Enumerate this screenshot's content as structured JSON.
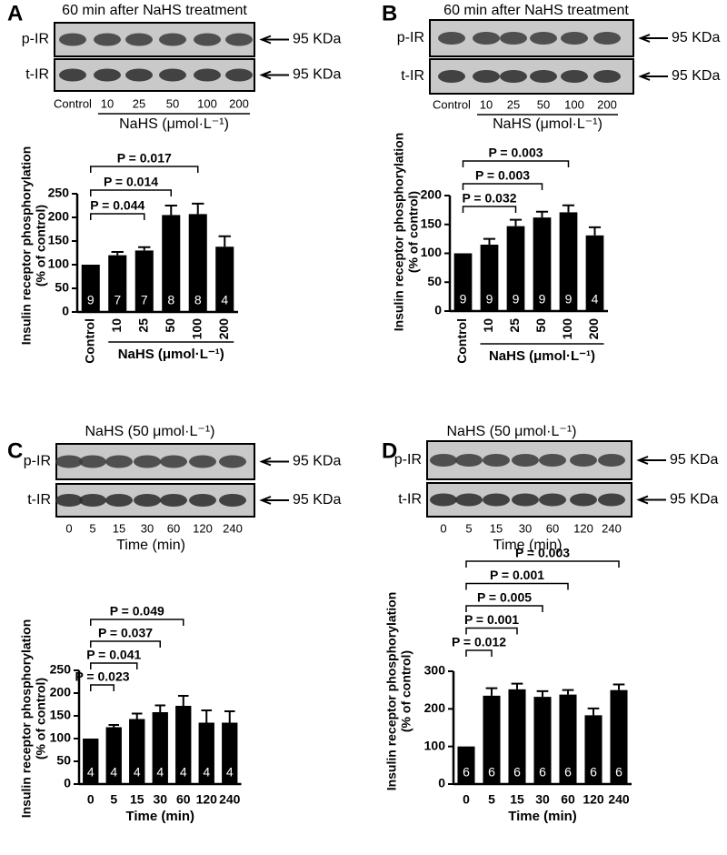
{
  "chart_data": [
    {
      "type": "bar",
      "label": "A",
      "blot": {
        "title": "60 min after NaHS treatment",
        "rows": [
          "p-IR",
          "t-IR"
        ],
        "marker": [
          "95 KDa",
          "95 KDa"
        ],
        "lanes": [
          "Control",
          "10",
          "25",
          "50",
          "100",
          "200"
        ],
        "xlabel": "NaHS (μmol·L⁻¹)"
      },
      "ylabel": [
        "Insulin receptor phosphorylation",
        "(% of control)"
      ],
      "categories": [
        "Control",
        "10",
        "25",
        "50",
        "100",
        "200"
      ],
      "xlabel": "NaHS (μmol·L⁻¹)",
      "group_bracket": true,
      "values": [
        100,
        120,
        130,
        205,
        207,
        138
      ],
      "errors": [
        0,
        7,
        7,
        20,
        22,
        22
      ],
      "n": [
        9,
        7,
        7,
        8,
        8,
        4
      ],
      "color": "#000000",
      "ylim": [
        0,
        250
      ],
      "yticks": [
        0,
        50,
        100,
        150,
        200,
        250
      ],
      "annotations": [
        {
          "text": "P = 0.044",
          "between": [
            "Control",
            "25"
          ]
        },
        {
          "text": "P = 0.014",
          "between": [
            "Control",
            "50"
          ]
        },
        {
          "text": "P = 0.017",
          "between": [
            "Control",
            "100"
          ]
        }
      ]
    },
    {
      "type": "bar",
      "label": "B",
      "blot": {
        "title": "60 min after NaHS treatment",
        "rows": [
          "p-IR",
          "t-IR"
        ],
        "marker": [
          "95 KDa",
          "95 KDa"
        ],
        "lanes": [
          "Control",
          "10",
          "25",
          "50",
          "100",
          "200"
        ],
        "xlabel": "NaHS (μmol·L⁻¹)"
      },
      "ylabel": [
        "Insulin receptor phosphorylation",
        "(% of control)"
      ],
      "categories": [
        "Control",
        "10",
        "25",
        "50",
        "100",
        "200"
      ],
      "xlabel": "NaHS (μmol·L⁻¹)",
      "group_bracket": true,
      "values": [
        100,
        115,
        147,
        162,
        171,
        131
      ],
      "errors": [
        0,
        10,
        11,
        10,
        12,
        14
      ],
      "n": [
        9,
        9,
        9,
        9,
        9,
        4
      ],
      "color": "#000000",
      "ylim": [
        0,
        200
      ],
      "yticks": [
        0,
        50,
        100,
        150,
        200
      ],
      "annotations": [
        {
          "text": "P = 0.032",
          "between": [
            "Control",
            "25"
          ]
        },
        {
          "text": "P = 0.003",
          "between": [
            "Control",
            "50"
          ]
        },
        {
          "text": "P = 0.003",
          "between": [
            "Control",
            "100"
          ]
        }
      ]
    },
    {
      "type": "bar",
      "label": "C",
      "blot": {
        "title": "NaHS (50 μmol·L⁻¹)",
        "rows": [
          "p-IR",
          "t-IR"
        ],
        "marker": [
          "95 KDa",
          "95 KDa"
        ],
        "lanes": [
          "0",
          "5",
          "15",
          "30",
          "60",
          "120",
          "240"
        ],
        "xlabel": "Time (min)"
      },
      "ylabel": [
        "Insulin receptor phosphorylation",
        "(% of control)"
      ],
      "categories": [
        "0",
        "5",
        "15",
        "30",
        "60",
        "120",
        "240"
      ],
      "xlabel": "Time (min)",
      "group_bracket": false,
      "values": [
        100,
        125,
        143,
        158,
        172,
        135,
        135
      ],
      "errors": [
        0,
        5,
        12,
        15,
        22,
        27,
        25
      ],
      "n": [
        4,
        4,
        4,
        4,
        4,
        4,
        4
      ],
      "color": "#000000",
      "ylim": [
        0,
        250
      ],
      "yticks": [
        0,
        50,
        100,
        150,
        200,
        250
      ],
      "annotations": [
        {
          "text": "P = 0.023",
          "between": [
            "0",
            "5"
          ]
        },
        {
          "text": "P = 0.041",
          "between": [
            "0",
            "15"
          ]
        },
        {
          "text": "P = 0.037",
          "between": [
            "0",
            "30"
          ]
        },
        {
          "text": "P = 0.049",
          "between": [
            "0",
            "60"
          ]
        }
      ]
    },
    {
      "type": "bar",
      "label": "D",
      "blot": {
        "title": "NaHS (50 μmol·L⁻¹)",
        "rows": [
          "p-IR",
          "t-IR"
        ],
        "marker": [
          "95 KDa",
          "95 KDa"
        ],
        "lanes": [
          "0",
          "5",
          "15",
          "30",
          "60",
          "120",
          "240"
        ],
        "xlabel": "Time (min)"
      },
      "ylabel": [
        "Insulin receptor phosphorylation",
        "(% of control)"
      ],
      "categories": [
        "0",
        "5",
        "15",
        "30",
        "60",
        "120",
        "240"
      ],
      "xlabel": "Time (min)",
      "group_bracket": false,
      "values": [
        100,
        235,
        252,
        232,
        238,
        183,
        250
      ],
      "errors": [
        0,
        20,
        15,
        15,
        12,
        18,
        15
      ],
      "n": [
        6,
        6,
        6,
        6,
        6,
        6,
        6
      ],
      "color": "#000000",
      "ylim": [
        0,
        300
      ],
      "yticks": [
        0,
        100,
        200,
        300
      ],
      "annotations": [
        {
          "text": "P = 0.012",
          "between": [
            "0",
            "5"
          ]
        },
        {
          "text": "P = 0.001",
          "between": [
            "0",
            "15"
          ]
        },
        {
          "text": "P = 0.005",
          "between": [
            "0",
            "30"
          ]
        },
        {
          "text": "P = 0.001",
          "between": [
            "0",
            "60"
          ]
        },
        {
          "text": "P = 0.003",
          "between": [
            "0",
            "240"
          ]
        }
      ]
    }
  ]
}
